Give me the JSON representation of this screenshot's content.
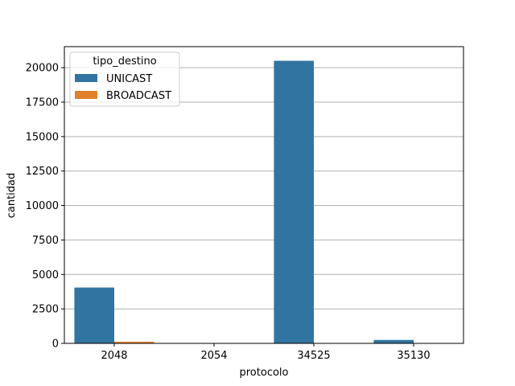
{
  "chart_data": {
    "type": "bar",
    "xlabel": "protocolo",
    "ylabel": "cantidad",
    "categories": [
      "2048",
      "2054",
      "34525",
      "35130"
    ],
    "series": [
      {
        "name": "UNICAST",
        "color": "#3274a1",
        "values": [
          4050,
          0,
          20500,
          250
        ]
      },
      {
        "name": "BROADCAST",
        "color": "#e1812c",
        "values": [
          120,
          0,
          0,
          0
        ]
      }
    ],
    "ylim": [
      0,
      21525
    ],
    "yticks": [
      0,
      2500,
      5000,
      7500,
      10000,
      12500,
      15000,
      17500,
      20000
    ],
    "ytick_labels": [
      "0",
      "2500",
      "5000",
      "7500",
      "10000",
      "12500",
      "15000",
      "17500",
      "20000"
    ],
    "grid": "horizontal",
    "legend": {
      "title": "tipo_destino",
      "placement": "top-left"
    }
  }
}
